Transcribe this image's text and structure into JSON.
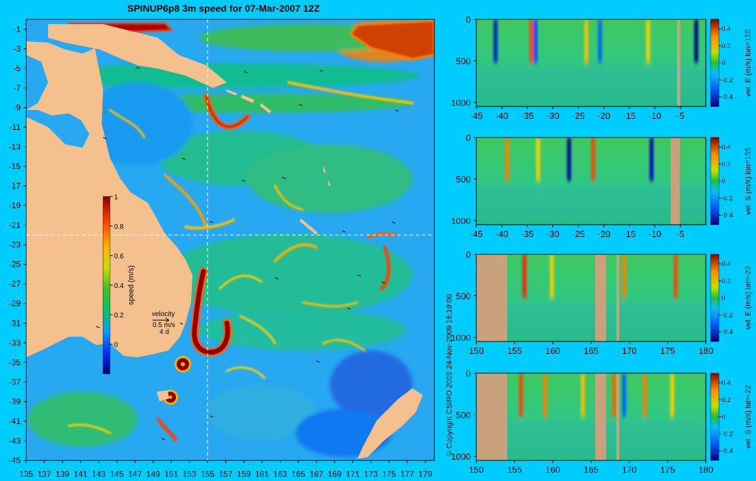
{
  "title": "SPINUP6p8 3m speed for 07-Mar-2007 12Z",
  "copyright": "© Copyright CSIRO 2009   24-Nov-2009 16:19:00",
  "colors": {
    "background": "#00ccff",
    "land": "#f4c08e",
    "land_section": "#c8a27c",
    "crosshair": "#ffffff"
  },
  "chart_data": [
    {
      "type": "heatmap",
      "title": "SPINUP6p8 3m speed for 07-Mar-2007 12Z",
      "x_ticks": [
        "135",
        "137",
        "139",
        "141",
        "143",
        "145",
        "147",
        "149",
        "151",
        "153",
        "155",
        "157",
        "159",
        "161",
        "163",
        "165",
        "167",
        "169",
        "171",
        "173",
        "175",
        "177",
        "179"
      ],
      "y_ticks": [
        "-1",
        "-3",
        "-5",
        "-7",
        "-9",
        "-11",
        "-13",
        "-15",
        "-17",
        "-19",
        "-21",
        "-23",
        "-25",
        "-27",
        "-29",
        "-31",
        "-33",
        "-35",
        "-37",
        "-39",
        "-41",
        "-43",
        "-45"
      ],
      "xlim": [
        135,
        180
      ],
      "ylim": [
        -45,
        0
      ],
      "crosshair": {
        "lon": 155,
        "lat": -22
      },
      "colorbar": {
        "label": "speed (m/s)",
        "ticks": [
          "0",
          "0.2",
          "0.4",
          "0.6",
          "0.8",
          "1"
        ],
        "range": [
          -0.2,
          1
        ]
      },
      "velocity_key": {
        "label": "velocity",
        "speed": "0.5 m/s",
        "duration": "4 d"
      }
    },
    {
      "type": "heatmap",
      "x_ticks": [
        "-45",
        "-40",
        "-35",
        "-30",
        "-25",
        "-20",
        "-15",
        "-10",
        "-5"
      ],
      "y_ticks": [
        "0",
        "500",
        "1000"
      ],
      "xlim": [
        -45,
        0
      ],
      "ylim": [
        1050,
        0
      ],
      "colorbar": {
        "label": "vel. E (m/s) lon=155",
        "ticks": [
          "0.4",
          "0.2",
          "0",
          "-0.2",
          "-0.4"
        ]
      }
    },
    {
      "type": "heatmap",
      "x_ticks": [
        "-45",
        "-40",
        "-35",
        "-30",
        "-25",
        "-20",
        "-15",
        "-10",
        "-5"
      ],
      "y_ticks": [
        "0",
        "500",
        "1000"
      ],
      "xlim": [
        -45,
        0
      ],
      "ylim": [
        1050,
        0
      ],
      "colorbar": {
        "label": "vel. S (m/s) lon=155",
        "ticks": [
          "0.4",
          "0.2",
          "0",
          "-0.2",
          "-0.4"
        ]
      }
    },
    {
      "type": "heatmap",
      "x_ticks": [
        "150",
        "155",
        "160",
        "165",
        "170",
        "175",
        "180"
      ],
      "y_ticks": [
        "0",
        "500",
        "1000"
      ],
      "xlim": [
        150,
        180
      ],
      "ylim": [
        1050,
        0
      ],
      "colorbar": {
        "label": "vel. E (m/s) lat=-22",
        "ticks": [
          "0.4",
          "0.2",
          "0",
          "-0.2",
          "-0.4"
        ]
      }
    },
    {
      "type": "heatmap",
      "x_ticks": [
        "150",
        "155",
        "160",
        "165",
        "170",
        "175",
        "180"
      ],
      "y_ticks": [
        "0",
        "500",
        "1000"
      ],
      "xlim": [
        150,
        180
      ],
      "ylim": [
        1050,
        0
      ],
      "colorbar": {
        "label": "vel. S (m/s) lat=-22",
        "ticks": [
          "0.4",
          "0.2",
          "0",
          "-0.2",
          "-0.4"
        ]
      }
    }
  ]
}
